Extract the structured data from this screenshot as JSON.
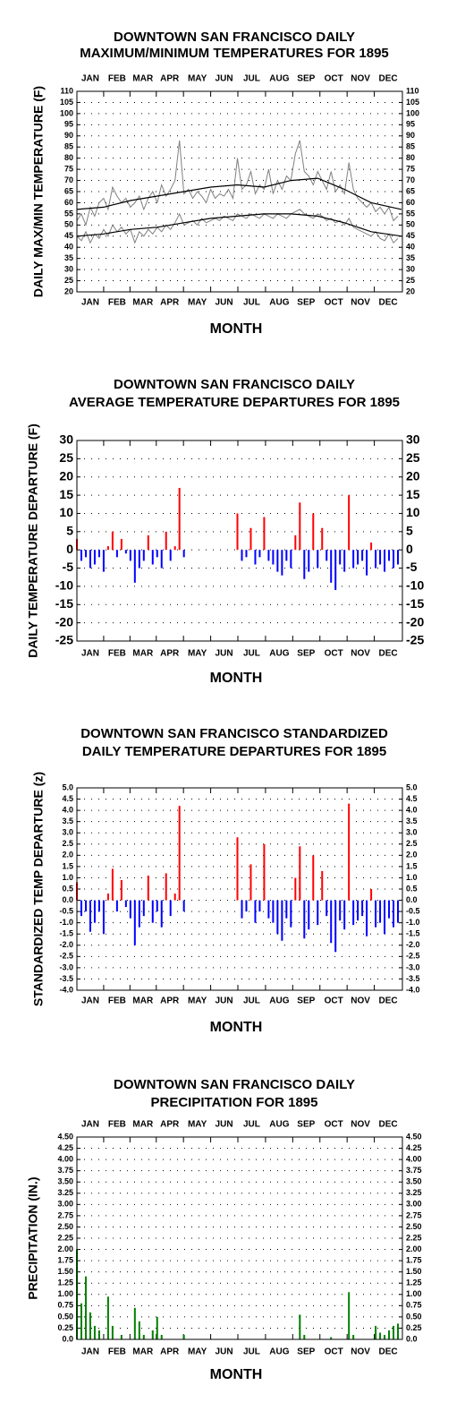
{
  "chart_data": [
    {
      "type": "line",
      "title": [
        "DOWNTOWN SAN FRANCISCO DAILY",
        "MAXIMUM/MINIMUM TEMPERATURES FOR 1895"
      ],
      "x_label": "MONTH",
      "y_label": "DAILY MAX/MIN TEMPERATURE (F)",
      "x": [
        1,
        6,
        11,
        16,
        21,
        26,
        31,
        36,
        41,
        46,
        51,
        56,
        61,
        66,
        71,
        76,
        81,
        86,
        91,
        96,
        101,
        106,
        111,
        116,
        121,
        126,
        131,
        136,
        141,
        146,
        151,
        156,
        161,
        166,
        171,
        176,
        181,
        186,
        191,
        196,
        201,
        206,
        211,
        216,
        221,
        226,
        231,
        236,
        241,
        246,
        251,
        256,
        261,
        266,
        271,
        276,
        281,
        286,
        291,
        296,
        301,
        306,
        311,
        316,
        321,
        326,
        331,
        336,
        341,
        346,
        351,
        356,
        361
      ],
      "xlim": [
        1,
        366
      ],
      "xticks": [
        {
          "value": 16,
          "label": "JAN"
        },
        {
          "value": 46,
          "label": "FEB"
        },
        {
          "value": 75,
          "label": "MAR"
        },
        {
          "value": 105,
          "label": "APR"
        },
        {
          "value": 136,
          "label": "MAY"
        },
        {
          "value": 166,
          "label": "JUN"
        },
        {
          "value": 197,
          "label": "JUL"
        },
        {
          "value": 228,
          "label": "AUG"
        },
        {
          "value": 258,
          "label": "SEP"
        },
        {
          "value": 289,
          "label": "OCT"
        },
        {
          "value": 319,
          "label": "NOV"
        },
        {
          "value": 350,
          "label": "DEC"
        }
      ],
      "ylim": [
        20,
        110
      ],
      "yticks": [
        20,
        25,
        30,
        35,
        40,
        45,
        50,
        55,
        60,
        65,
        70,
        75,
        80,
        85,
        90,
        95,
        100,
        105,
        110
      ],
      "grid": true,
      "series": [
        {
          "color": "#808080",
          "values": [
            52,
            55,
            50,
            58,
            54,
            60,
            62,
            57,
            67,
            63,
            60,
            62,
            58,
            60,
            63,
            57,
            62,
            65,
            60,
            68,
            63,
            66,
            70,
            88,
            64,
            66,
            62,
            65,
            63,
            60,
            66,
            62,
            64,
            63,
            66,
            62,
            80,
            66,
            68,
            74,
            64,
            68,
            66,
            75,
            64,
            70,
            66,
            72,
            70,
            82,
            88,
            74,
            72,
            68,
            74,
            70,
            66,
            74,
            65,
            68,
            64,
            78,
            66,
            62,
            60,
            58,
            60,
            56,
            58,
            55,
            58,
            52,
            54
          ]
        },
        {
          "color": "#808080",
          "values": [
            45,
            43,
            47,
            42,
            46,
            44,
            48,
            45,
            50,
            47,
            49,
            46,
            48,
            42,
            47,
            45,
            48,
            46,
            49,
            47,
            50,
            48,
            51,
            55,
            50,
            51,
            52,
            50,
            53,
            51,
            52,
            53,
            52,
            54,
            53,
            52,
            55,
            54,
            53,
            55,
            54,
            53,
            55,
            54,
            53,
            55,
            54,
            53,
            55,
            56,
            57,
            55,
            54,
            53,
            55,
            54,
            52,
            53,
            51,
            52,
            50,
            53,
            49,
            48,
            47,
            46,
            45,
            47,
            44,
            43,
            46,
            42,
            44
          ]
        },
        {
          "color": "#000000",
          "x": [
            1,
            31,
            61,
            91,
            121,
            151,
            181,
            211,
            241,
            271,
            301,
            331,
            365
          ],
          "values": [
            57,
            58,
            61,
            63,
            65,
            67,
            68,
            67,
            70,
            71,
            66,
            60,
            57
          ]
        },
        {
          "color": "#000000",
          "x": [
            1,
            31,
            61,
            91,
            121,
            151,
            181,
            211,
            241,
            271,
            301,
            331,
            365
          ],
          "values": [
            45,
            46,
            48,
            49,
            51,
            53,
            54,
            55,
            55,
            54,
            51,
            47,
            45
          ]
        }
      ]
    },
    {
      "type": "bar",
      "title": [
        "DOWNTOWN SAN FRANCISCO DAILY",
        "AVERAGE TEMPERATURE DEPARTURES FOR 1895"
      ],
      "x_label": "MONTH",
      "y_label": "DAILY TEMPERATURE DEPARTURE (F)",
      "x": [
        1,
        6,
        11,
        16,
        21,
        26,
        31,
        36,
        41,
        46,
        51,
        56,
        61,
        66,
        71,
        76,
        81,
        86,
        91,
        96,
        101,
        106,
        111,
        116,
        121,
        126,
        131,
        136,
        141,
        146,
        151,
        156,
        161,
        166,
        171,
        176,
        181,
        186,
        191,
        196,
        201,
        206,
        211,
        216,
        221,
        226,
        231,
        236,
        241,
        246,
        251,
        256,
        261,
        266,
        271,
        276,
        281,
        286,
        291,
        296,
        301,
        306,
        311,
        316,
        321,
        326,
        331,
        336,
        341,
        346,
        351,
        356,
        361
      ],
      "xlim": [
        1,
        366
      ],
      "xticks": [
        {
          "value": 16,
          "label": "JAN"
        },
        {
          "value": 46,
          "label": "FEB"
        },
        {
          "value": 75,
          "label": "MAR"
        },
        {
          "value": 105,
          "label": "APR"
        },
        {
          "value": 136,
          "label": "MAY"
        },
        {
          "value": 166,
          "label": "JUN"
        },
        {
          "value": 197,
          "label": "JUL"
        },
        {
          "value": 228,
          "label": "AUG"
        },
        {
          "value": 258,
          "label": "SEP"
        },
        {
          "value": 289,
          "label": "OCT"
        },
        {
          "value": 319,
          "label": "NOV"
        },
        {
          "value": 350,
          "label": "DEC"
        }
      ],
      "ylim": [
        -25,
        30
      ],
      "yticks": [
        -25,
        -20,
        -15,
        -10,
        -5,
        0,
        5,
        10,
        15,
        20,
        25,
        30
      ],
      "grid": true,
      "pos_color": "#ff0000",
      "neg_color": "#0000ff",
      "values": [
        3,
        -3,
        -2,
        -5,
        -4,
        -2,
        -6,
        1,
        5,
        -2,
        3,
        -1,
        -3,
        -9,
        -5,
        -3,
        4,
        -4,
        -2,
        -5,
        5,
        -3,
        1,
        17,
        -2,
        null,
        null,
        null,
        null,
        null,
        null,
        null,
        null,
        null,
        null,
        null,
        10,
        -3,
        -2,
        6,
        -4,
        -2,
        9,
        -3,
        -4,
        -6,
        -7,
        -3,
        -5,
        4,
        13,
        -8,
        -6,
        10,
        -5,
        6,
        -3,
        -9,
        -11,
        -4,
        -6,
        15,
        -5,
        -4,
        -3,
        -7,
        2,
        -5,
        -4,
        -6,
        -3,
        -5,
        -4
      ]
    },
    {
      "type": "bar",
      "title": [
        "DOWNTOWN SAN FRANCISCO STANDARDIZED",
        "DAILY TEMPERATURE DEPARTURES FOR 1895"
      ],
      "x_label": "MONTH",
      "y_label": "STANDARDIZED TEMP DEPARTURE (z)",
      "x": [
        1,
        6,
        11,
        16,
        21,
        26,
        31,
        36,
        41,
        46,
        51,
        56,
        61,
        66,
        71,
        76,
        81,
        86,
        91,
        96,
        101,
        106,
        111,
        116,
        121,
        126,
        131,
        136,
        141,
        146,
        151,
        156,
        161,
        166,
        171,
        176,
        181,
        186,
        191,
        196,
        201,
        206,
        211,
        216,
        221,
        226,
        231,
        236,
        241,
        246,
        251,
        256,
        261,
        266,
        271,
        276,
        281,
        286,
        291,
        296,
        301,
        306,
        311,
        316,
        321,
        326,
        331,
        336,
        341,
        346,
        351,
        356,
        361
      ],
      "xlim": [
        1,
        366
      ],
      "xticks": [
        {
          "value": 16,
          "label": "JAN"
        },
        {
          "value": 46,
          "label": "FEB"
        },
        {
          "value": 75,
          "label": "MAR"
        },
        {
          "value": 105,
          "label": "APR"
        },
        {
          "value": 136,
          "label": "MAY"
        },
        {
          "value": 166,
          "label": "JUN"
        },
        {
          "value": 197,
          "label": "JUL"
        },
        {
          "value": 228,
          "label": "AUG"
        },
        {
          "value": 258,
          "label": "SEP"
        },
        {
          "value": 289,
          "label": "OCT"
        },
        {
          "value": 319,
          "label": "NOV"
        },
        {
          "value": 350,
          "label": "DEC"
        }
      ],
      "ylim": [
        -4,
        5
      ],
      "yticks": [
        {
          "value": -4,
          "label": "-4.0"
        },
        -3.5,
        {
          "value": -3,
          "label": "-3.0"
        },
        -2.5,
        {
          "value": -2,
          "label": "-2.0"
        },
        -1.5,
        {
          "value": -1,
          "label": "-1.0"
        },
        -0.5,
        {
          "value": 0,
          "label": "0.0"
        },
        0.5,
        {
          "value": 1,
          "label": "1.0"
        },
        1.5,
        {
          "value": 2,
          "label": "2.0"
        },
        2.5,
        {
          "value": 3,
          "label": "3.0"
        },
        3.5,
        {
          "value": 4,
          "label": "4.0"
        },
        4.5,
        {
          "value": 5,
          "label": "5.0"
        }
      ],
      "grid": true,
      "pos_color": "#ff0000",
      "neg_color": "#0000ff",
      "values": [
        0.8,
        -0.7,
        -0.5,
        -1.4,
        -1.0,
        -0.5,
        -1.5,
        0.3,
        1.4,
        -0.5,
        0.9,
        -0.3,
        -0.8,
        -2.0,
        -1.2,
        -0.7,
        1.1,
        -1.0,
        -0.5,
        -1.2,
        1.2,
        -0.7,
        0.3,
        4.2,
        -0.5,
        null,
        null,
        null,
        null,
        null,
        null,
        null,
        null,
        null,
        null,
        null,
        2.8,
        -0.8,
        -0.5,
        1.6,
        -1.0,
        -0.5,
        2.5,
        -0.8,
        -1.0,
        -1.5,
        -1.8,
        -0.8,
        -1.2,
        1.0,
        2.4,
        -1.7,
        -1.3,
        2.0,
        -1.1,
        1.3,
        -0.7,
        -1.9,
        -2.3,
        -0.9,
        -1.3,
        4.3,
        -1.1,
        -0.9,
        -0.7,
        -1.6,
        0.5,
        -1.2,
        -1.0,
        -1.5,
        -0.8,
        -1.2,
        -1.0
      ]
    },
    {
      "type": "bar",
      "title": [
        "DOWNTOWN SAN FRANCISCO DAILY",
        "PRECIPITATION FOR 1895"
      ],
      "x_label": "MONTH",
      "y_label": "PRECIPITATION (IN.)",
      "x": [
        1,
        6,
        11,
        16,
        21,
        26,
        31,
        36,
        41,
        46,
        51,
        56,
        61,
        66,
        71,
        76,
        81,
        86,
        91,
        96,
        101,
        106,
        111,
        116,
        121,
        126,
        131,
        136,
        141,
        146,
        151,
        156,
        161,
        166,
        171,
        176,
        181,
        186,
        191,
        196,
        201,
        206,
        211,
        216,
        221,
        226,
        231,
        236,
        241,
        246,
        251,
        256,
        261,
        266,
        271,
        276,
        281,
        286,
        291,
        296,
        301,
        306,
        311,
        316,
        321,
        326,
        331,
        336,
        341,
        346,
        351,
        356,
        361
      ],
      "xlim": [
        1,
        366
      ],
      "xticks": [
        {
          "value": 16,
          "label": "JAN"
        },
        {
          "value": 46,
          "label": "FEB"
        },
        {
          "value": 75,
          "label": "MAR"
        },
        {
          "value": 105,
          "label": "APR"
        },
        {
          "value": 136,
          "label": "MAY"
        },
        {
          "value": 166,
          "label": "JUN"
        },
        {
          "value": 197,
          "label": "JUL"
        },
        {
          "value": 228,
          "label": "AUG"
        },
        {
          "value": 258,
          "label": "SEP"
        },
        {
          "value": 289,
          "label": "OCT"
        },
        {
          "value": 319,
          "label": "NOV"
        },
        {
          "value": 350,
          "label": "DEC"
        }
      ],
      "ylim": [
        0,
        4.5
      ],
      "yticks": [
        {
          "value": 0,
          "label": "0.0"
        },
        0.25,
        {
          "value": 0.5,
          "label": "0.50"
        },
        0.75,
        {
          "value": 1,
          "label": "1.00"
        },
        1.25,
        {
          "value": 1.5,
          "label": "1.50"
        },
        1.75,
        {
          "value": 2,
          "label": "2.00"
        },
        2.25,
        {
          "value": 2.5,
          "label": "2.50"
        },
        2.75,
        {
          "value": 3,
          "label": "3.00"
        },
        3.25,
        {
          "value": 3.5,
          "label": "3.50"
        },
        3.75,
        {
          "value": 4,
          "label": "4.00"
        },
        4.25,
        {
          "value": 4.5,
          "label": "4.50"
        }
      ],
      "grid": true,
      "color": "#008000",
      "values": [
        2.0,
        0.8,
        1.4,
        0.6,
        0.3,
        0.2,
        0,
        0.95,
        0.3,
        0,
        0.1,
        0,
        0,
        0.7,
        0.4,
        0.1,
        0,
        0.2,
        0.5,
        0.1,
        0,
        0,
        0,
        0,
        0.1,
        0,
        0,
        0,
        0,
        0,
        0,
        0,
        0,
        0,
        0,
        0,
        0,
        0,
        0,
        0,
        0,
        0,
        0,
        0,
        0,
        0,
        0,
        0,
        0,
        0,
        0.55,
        0.1,
        0,
        0,
        0,
        0,
        0,
        0.05,
        0,
        0,
        0,
        1.05,
        0.1,
        0,
        0,
        0,
        0,
        0.3,
        0.15,
        0.1,
        0.2,
        0.3,
        0.35
      ]
    }
  ]
}
